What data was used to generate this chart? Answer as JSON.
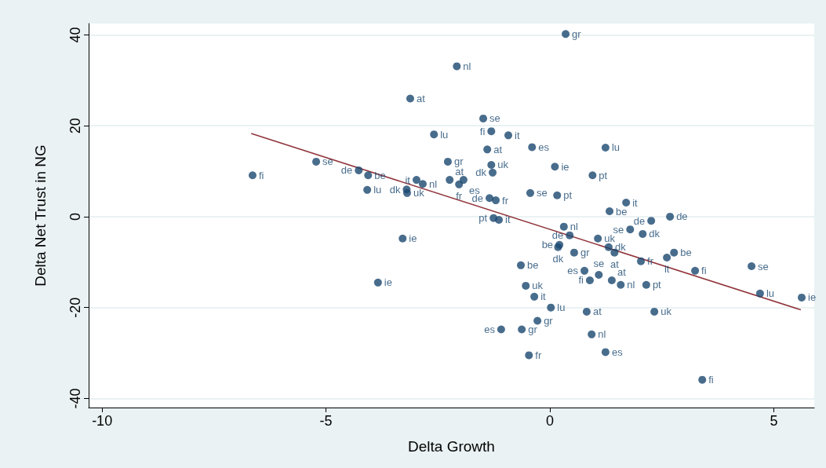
{
  "chart_data": {
    "type": "scatter",
    "xlabel": "Delta Growth",
    "ylabel": "Delta Net Trust in NG",
    "xlim": [
      -10.3,
      5.9
    ],
    "xticks": [
      -10,
      -5,
      0,
      5
    ],
    "ylim": [
      -42,
      42.5
    ],
    "yticks": [
      -40,
      -20,
      0,
      20,
      40
    ],
    "grid": "y",
    "marker": "circle",
    "series": [
      {
        "color": "#1a476f",
        "x": [
          0.35,
          -2.08,
          -3.12,
          -1.49,
          -1.31,
          -0.93,
          -2.59,
          -1.4,
          -0.4,
          1.24,
          -2.28,
          -5.22,
          -1.31,
          -1.28,
          0.11,
          0.95,
          -6.64,
          -4.27,
          -4.06,
          -2.98,
          -2.84,
          -2.24,
          -1.93,
          -2.03,
          -4.08,
          -3.2,
          -3.19,
          -1.35,
          -1.21,
          -0.44,
          0.16,
          1.7,
          1.33,
          2.68,
          2.26,
          -1.26,
          -1.14,
          0.31,
          0.44,
          1.07,
          1.79,
          2.07,
          0.21,
          0.18,
          0.54,
          1.31,
          1.44,
          2.03,
          2.61,
          2.77,
          3.24,
          -3.29,
          -3.84,
          -0.65,
          0.77,
          1.09,
          1.38,
          0.89,
          1.58,
          2.15,
          -0.54,
          -0.35,
          0.02,
          0.82,
          2.33,
          -0.28,
          -1.09,
          -0.63,
          0.93,
          1.24,
          -0.47,
          3.4,
          4.5,
          4.69,
          5.62
        ],
        "values": [
          40.2,
          33.1,
          26,
          21.6,
          18.8,
          17.9,
          18.1,
          14.8,
          15.3,
          15.2,
          12.1,
          12.1,
          11.4,
          9.7,
          11,
          9.1,
          9.1,
          10.2,
          9.1,
          8.1,
          7.2,
          8.1,
          8.1,
          7.1,
          5.9,
          6,
          5.2,
          4.1,
          3.6,
          5.2,
          4.7,
          3.1,
          1.2,
          0,
          -0.9,
          -0.3,
          -0.7,
          -2.2,
          -4.1,
          -4.8,
          -2.8,
          -3.8,
          -6.2,
          -6.7,
          -7.9,
          -6.7,
          -7.9,
          -9.8,
          -9,
          -7.9,
          -11.9,
          -4.8,
          -14.5,
          -10.7,
          -11.9,
          -12.8,
          -14,
          -14,
          -15,
          -15,
          -15.2,
          -17.6,
          -20,
          -20.9,
          -20.9,
          -22.9,
          -24.8,
          -24.8,
          -25.9,
          -29.8,
          -30.5,
          -35.9,
          -10.9,
          -16.9,
          -17.8
        ],
        "value_labels": [
          "gr",
          "nl",
          "at",
          "se",
          "fi",
          "it",
          "lu",
          "at",
          "es",
          "lu",
          "gr",
          "se",
          "uk",
          "dk",
          "ie",
          "pt",
          "fi",
          "de",
          "be",
          "it",
          "nl",
          "at",
          "es",
          "fr",
          "lu",
          "dk",
          "uk",
          "de",
          "fr",
          "se",
          "pt",
          "it",
          "be",
          "de",
          "de",
          "pt",
          "it",
          "nl",
          "de",
          "uk",
          "se",
          "dk",
          "be",
          "dk",
          "gr",
          "dk",
          "at",
          "fr",
          "it",
          "be",
          "fi",
          "ie",
          "ie",
          "be",
          "es",
          "se",
          "at",
          "fi",
          "nl",
          "pt",
          "uk",
          "it",
          "lu",
          "at",
          "uk",
          "gr",
          "es",
          "gr",
          "nl",
          "es",
          "fr",
          "fi",
          "se",
          "lu",
          "ie"
        ]
      },
      {
        "type": "line",
        "color": "#90353b",
        "marker": "none",
        "x": [
          -6.67,
          5.6
        ],
        "values": [
          18.3,
          -20.5
        ]
      }
    ]
  }
}
